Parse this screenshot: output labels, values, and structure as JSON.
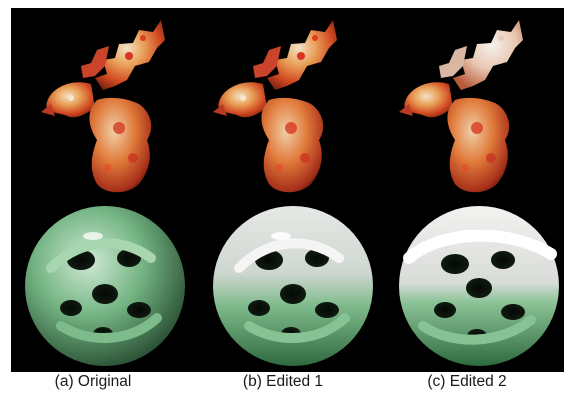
{
  "figure": {
    "captions": {
      "a": "(a) Original",
      "b": "(b) Edited 1",
      "c": "(c) Edited 2"
    },
    "colors": {
      "background": "#000000",
      "dragon_red": "#d8381e",
      "dragon_orange": "#e98a3c",
      "dragon_cream": "#f1dcc0",
      "knot_green": "#6fb07d",
      "knot_white": "#e6e9e6"
    }
  }
}
